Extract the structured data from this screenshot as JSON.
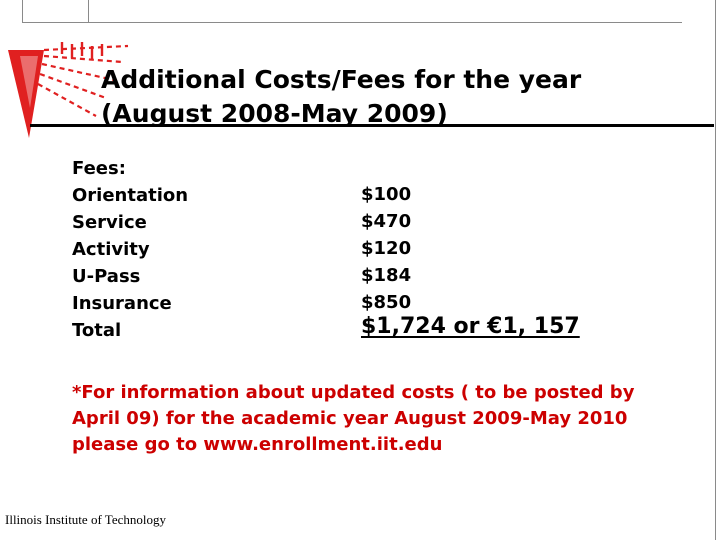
{
  "title": {
    "line1": "Additional Costs/Fees for the year",
    "line2": "(August 2008-May 2009)"
  },
  "fees": {
    "header": "Fees:",
    "items": [
      {
        "label": "Orientation",
        "value": "$100"
      },
      {
        "label": "Service",
        "value": "$470"
      },
      {
        "label": "Activity",
        "value": "$120"
      },
      {
        "label": "U-Pass",
        "value": "$184"
      },
      {
        "label": "Insurance",
        "value": "$850"
      }
    ],
    "total_label": "Total",
    "total_value": "$1,724  or €1, 157"
  },
  "note": {
    "line1": "*For information about updated costs ( to be posted by",
    "line2": "April 09) for the academic year August 2009-May 2010",
    "line3": "please go to www.enrollment.iit.edu"
  },
  "footer": "Illinois Institute of Technology",
  "colors": {
    "accent_red": "#cc0000",
    "logo_red": "#e02020"
  },
  "icons": {
    "logo": "iit-red-triangle-logo"
  }
}
